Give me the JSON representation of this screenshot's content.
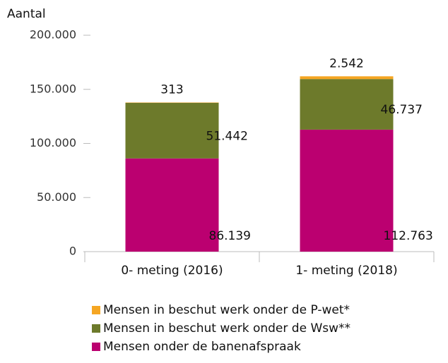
{
  "chart_data": {
    "type": "stacked_bar",
    "y_label": "Aantal",
    "categories": [
      "0- meting (2016)",
      "1- meting (2018)"
    ],
    "series": [
      {
        "name": "Mensen onder de banenafspraak",
        "color": "#bb0070",
        "values": [
          86139,
          112763
        ],
        "value_labels": [
          "86.139",
          "112.763"
        ]
      },
      {
        "name": "Mensen in beschut werk onder de Wsw**",
        "color": "#6d7a2b",
        "values": [
          51442,
          46737
        ],
        "value_labels": [
          "51.442",
          "46.737"
        ]
      },
      {
        "name": "Mensen in beschut werk onder de P-wet*",
        "color": "#f5a623",
        "values": [
          313,
          2542
        ],
        "value_labels": [
          "313",
          "2.542"
        ]
      }
    ],
    "ylim": [
      0,
      200000
    ],
    "yticks": [
      0,
      {
        "value": 50000,
        "label": "50.000"
      },
      {
        "value": 100000,
        "label": "100.000"
      },
      {
        "value": 150000,
        "label": "150.000"
      },
      {
        "value": 200000,
        "label": "200.000"
      }
    ],
    "grid": false,
    "legend": "bottom"
  }
}
